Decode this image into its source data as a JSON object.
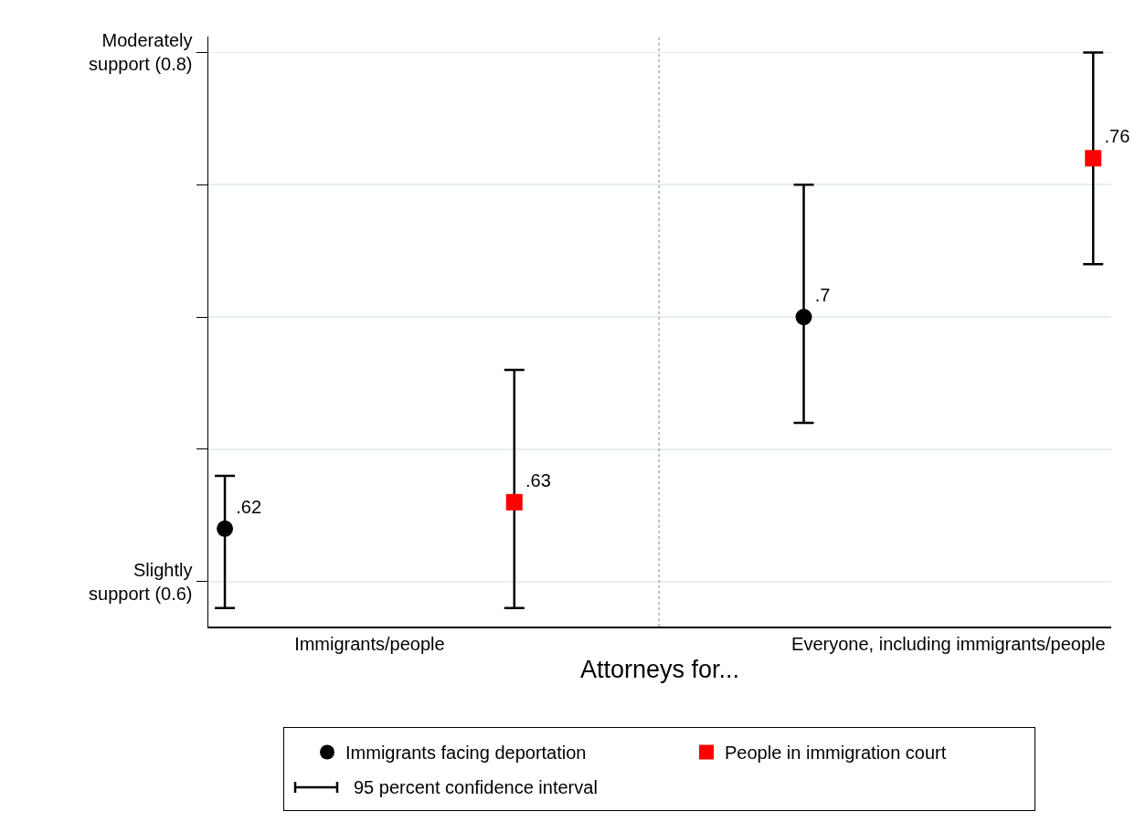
{
  "chart_data": {
    "type": "scatter",
    "xlabel": "Attorneys for...",
    "categories": [
      null,
      "Immigrants/people",
      null,
      null,
      null,
      "Everyone, including immigrants/people",
      null
    ],
    "series": [
      {
        "name": "Immigrants facing deportation",
        "color": "#000000",
        "marker": "circle",
        "values": [
          0.62,
          null,
          null,
          null,
          0.7,
          null,
          null
        ],
        "value_labels": [
          ".62",
          null,
          null,
          null,
          ".7",
          null,
          null
        ],
        "errors": [
          [
            0.59,
            0.64
          ],
          null,
          null,
          null,
          [
            0.66,
            0.75
          ],
          null,
          null
        ]
      },
      {
        "name": "People in immigration court",
        "color": "#ff0000",
        "marker": "square",
        "values": [
          null,
          null,
          0.63,
          null,
          null,
          null,
          0.76
        ],
        "value_labels": [
          null,
          null,
          ".63",
          null,
          null,
          null,
          ".76"
        ],
        "errors": [
          null,
          null,
          [
            0.59,
            0.68
          ],
          null,
          null,
          null,
          [
            0.72,
            0.8
          ]
        ]
      }
    ],
    "ylim": [
      0.583,
      0.806
    ],
    "yticks": [
      {
        "value": 0.6,
        "label": "Slightly\nsupport (0.6)"
      },
      {
        "value": 0.65,
        "label": null
      },
      {
        "value": 0.7,
        "label": null
      },
      {
        "value": 0.75,
        "label": null
      },
      {
        "value": 0.8,
        "label": "Moderately\nsupport (0.8)"
      }
    ],
    "grid": "y",
    "legend": "bottom",
    "annotations": [
      "95 percent confidence interval"
    ]
  }
}
